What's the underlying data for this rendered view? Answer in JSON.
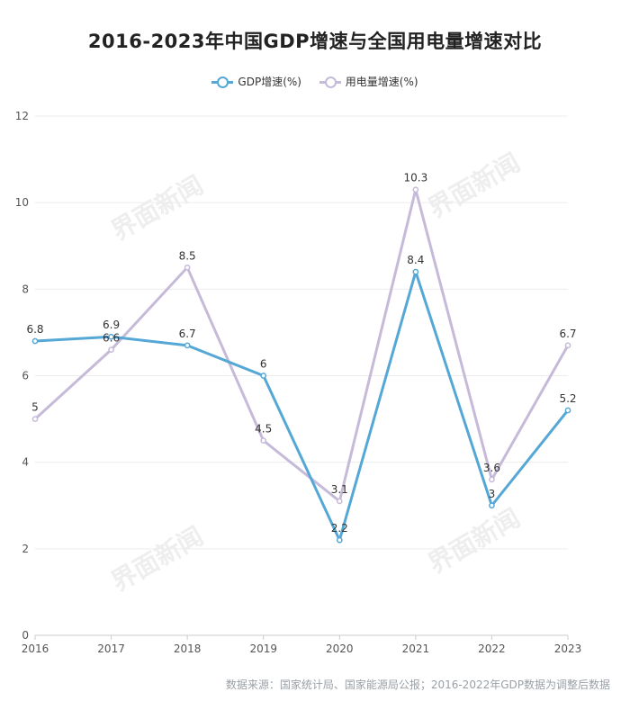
{
  "chart_data": {
    "type": "line",
    "title": "2016-2023年中国GDP增速与全国用电量增速对比",
    "categories": [
      "2016",
      "2017",
      "2018",
      "2019",
      "2020",
      "2021",
      "2022",
      "2023"
    ],
    "series": [
      {
        "name": "GDP增速(%)",
        "color": "#55a7d6",
        "values": [
          6.8,
          6.9,
          6.7,
          6,
          2.2,
          8.4,
          3,
          5.2
        ]
      },
      {
        "name": "用电量增速(%)",
        "color": "#c6bad9",
        "values": [
          5,
          6.6,
          8.5,
          4.5,
          3.1,
          10.3,
          3.6,
          6.7
        ]
      }
    ],
    "ylim": [
      0,
      12
    ],
    "yticks": [
      0,
      2,
      4,
      6,
      8,
      10,
      12
    ],
    "grid": true,
    "legend_position": "top-center"
  },
  "footer": {
    "source": "数据来源：国家统计局、国家能源局公报；2016-2022年GDP数据为调整后数据"
  },
  "watermark": {
    "text": "界面新闻"
  }
}
